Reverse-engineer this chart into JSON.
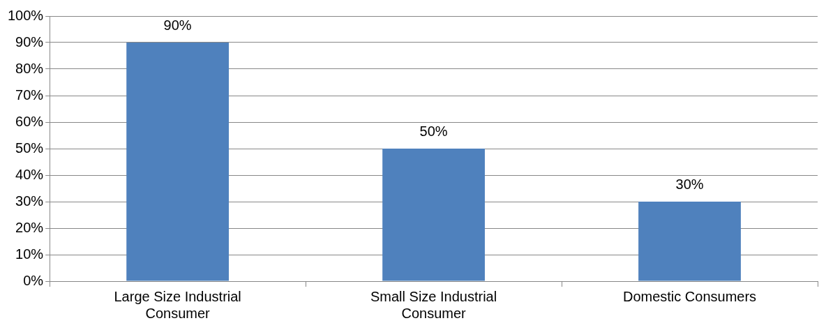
{
  "chart_data": {
    "type": "bar",
    "categories": [
      "Large Size Industrial Consumer",
      "Small Size Industrial Consumer",
      "Domestic Consumers"
    ],
    "values": [
      90,
      50,
      30
    ],
    "color": "#4f81bd",
    "value_labels": [
      "90%",
      "50%",
      "30%"
    ],
    "ylim": [
      0,
      100
    ],
    "yticks": [
      {
        "value": 0,
        "label": "0%"
      },
      {
        "value": 10,
        "label": "10%"
      },
      {
        "value": 20,
        "label": "20%"
      },
      {
        "value": 30,
        "label": "30%"
      },
      {
        "value": 40,
        "label": "40%"
      },
      {
        "value": 50,
        "label": "50%"
      },
      {
        "value": 60,
        "label": "60%"
      },
      {
        "value": 70,
        "label": "70%"
      },
      {
        "value": 80,
        "label": "80%"
      },
      {
        "value": 90,
        "label": "90%"
      },
      {
        "value": 100,
        "label": "100%"
      }
    ],
    "grid": "y",
    "legend": false
  }
}
